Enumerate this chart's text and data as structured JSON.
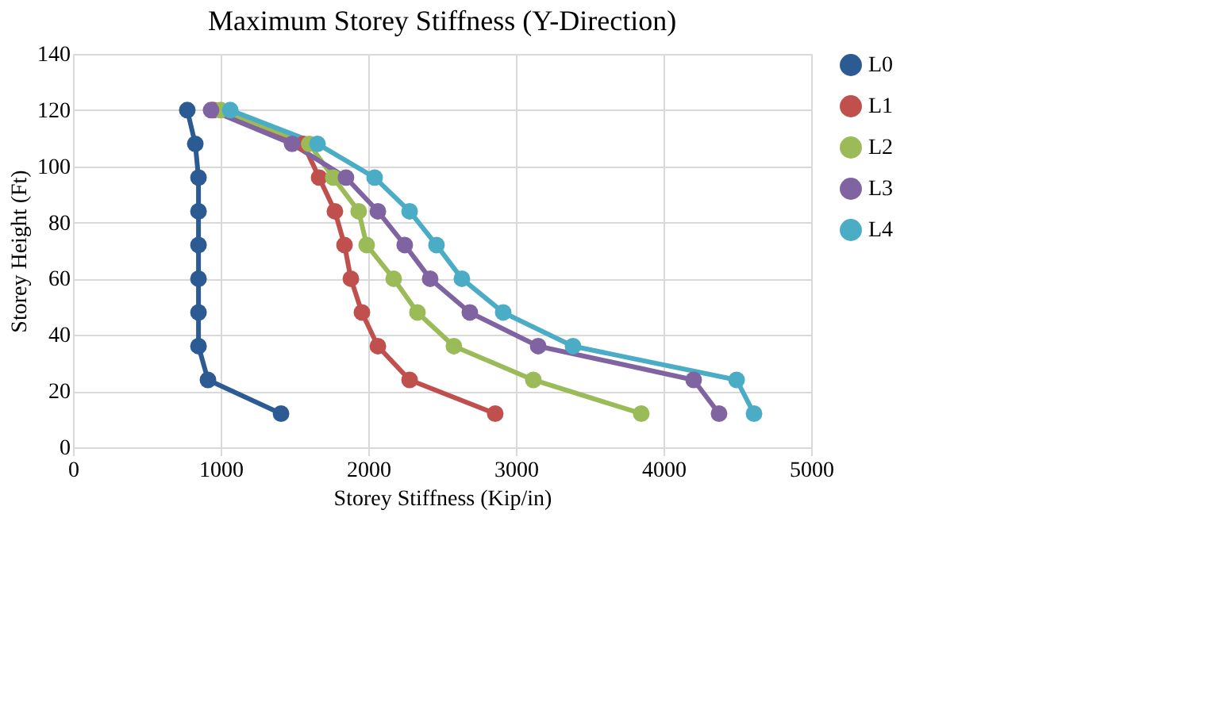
{
  "chart_data": {
    "type": "line",
    "title": "Maximum Storey Stiffness (Y-Direction)",
    "xlabel": "Storey Stiffness (Kip/in)",
    "ylabel": "Storey Height (Ft)",
    "series": [
      {
        "name": "L0",
        "color": "#2c5a92",
        "x": [
          774,
          828,
          850,
          850,
          850,
          850,
          850,
          850,
          914,
          1409
        ],
        "values": [
          120,
          108,
          96,
          84,
          72,
          60,
          48,
          36,
          24,
          12
        ]
      },
      {
        "name": "L1",
        "color": "#c0504d",
        "x": [
          950,
          1560,
          1667,
          1774,
          1839,
          1882,
          1957,
          2065,
          2280,
          2860
        ],
        "values": [
          120,
          108,
          96,
          84,
          72,
          60,
          48,
          36,
          24,
          12
        ]
      },
      {
        "name": "L2",
        "color": "#9bbb59",
        "x": [
          1000,
          1600,
          1763,
          1935,
          1989,
          2172,
          2333,
          2580,
          3118,
          3849
        ],
        "values": [
          120,
          108,
          96,
          84,
          72,
          60,
          48,
          36,
          24,
          12
        ]
      },
      {
        "name": "L3",
        "color": "#8064a2",
        "x": [
          935,
          1484,
          1849,
          2065,
          2247,
          2419,
          2688,
          3151,
          4204,
          4376
        ],
        "values": [
          120,
          108,
          96,
          84,
          72,
          60,
          48,
          36,
          24,
          12
        ]
      },
      {
        "name": "L4",
        "color": "#4bacc6",
        "x": [
          1065,
          1656,
          2043,
          2280,
          2462,
          2634,
          2914,
          3387,
          4495,
          4613
        ],
        "values": [
          120,
          108,
          96,
          84,
          72,
          60,
          48,
          36,
          24,
          12
        ]
      }
    ],
    "xlim": [
      0,
      5000
    ],
    "xticks": [
      0,
      1000,
      2000,
      3000,
      4000,
      5000
    ],
    "ylim": [
      0,
      140
    ],
    "yticks": [
      0,
      20,
      40,
      60,
      80,
      100,
      120,
      140
    ],
    "grid": true,
    "legend": "right",
    "marker": "circle",
    "line_style": "solid"
  }
}
